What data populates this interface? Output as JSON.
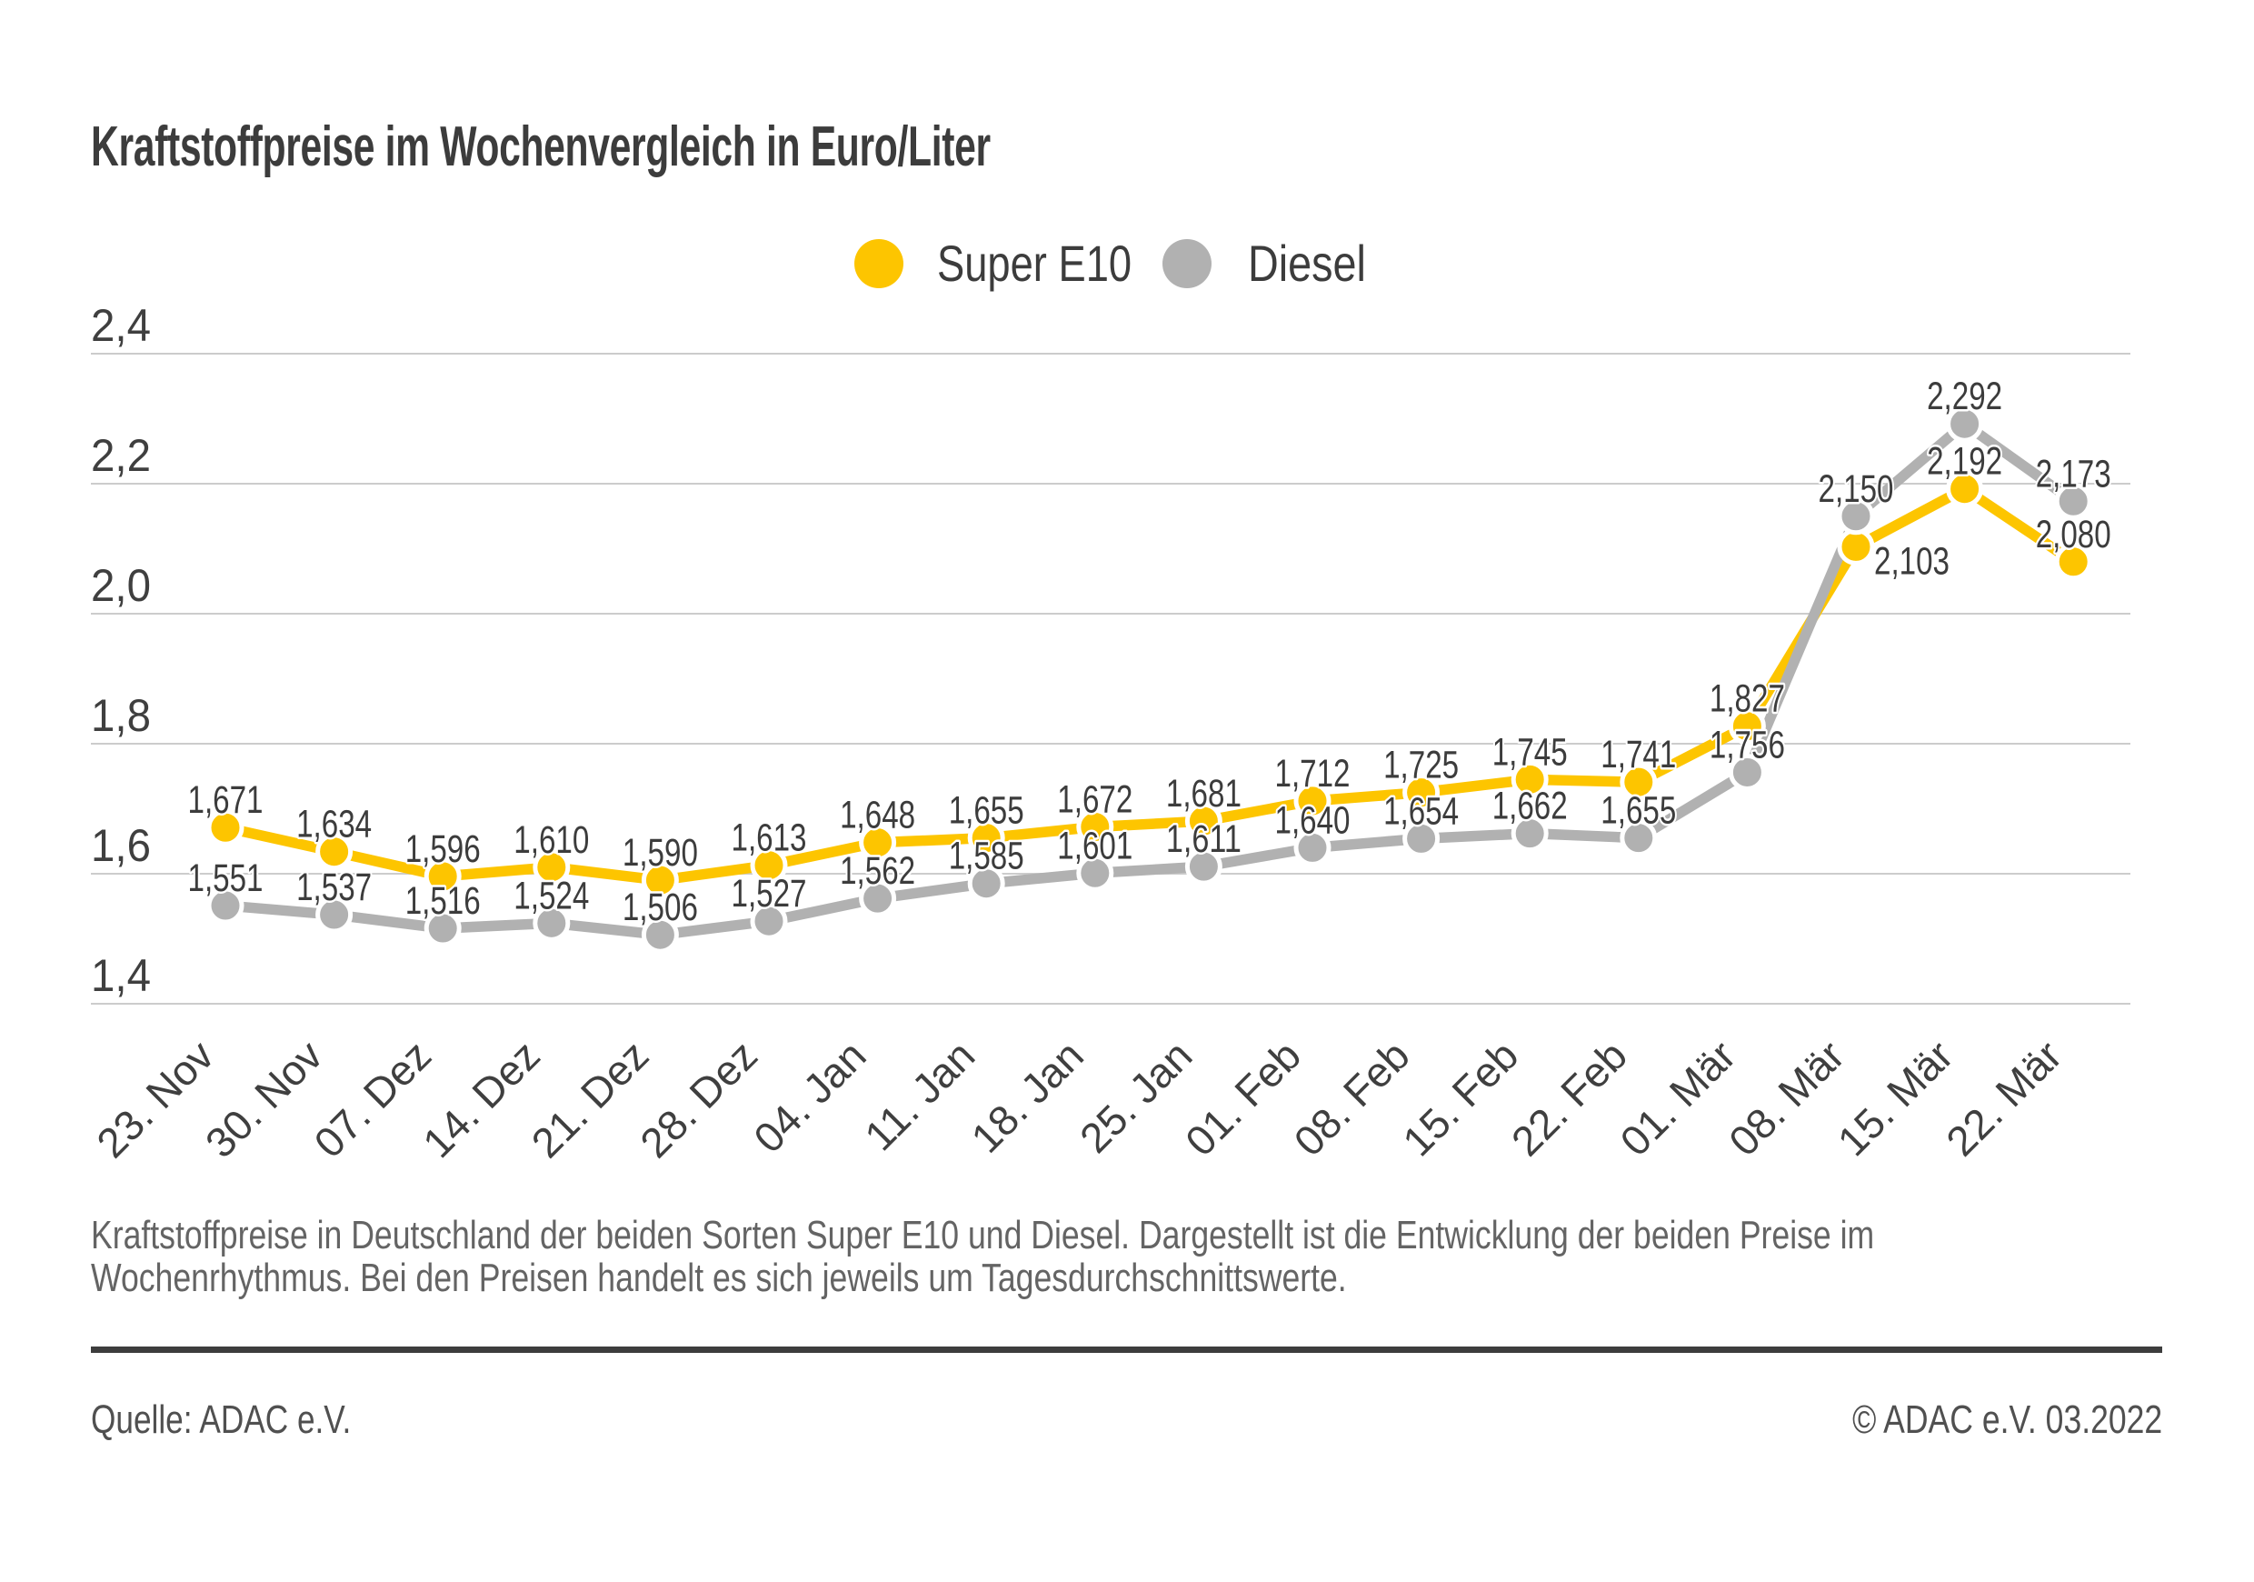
{
  "title": "Kraftstoffpreise im Wochenvergleich in Euro/Liter",
  "chart_data": {
    "type": "line",
    "categories": [
      "23. Nov",
      "30. Nov",
      "07. Dez",
      "14. Dez",
      "21. Dez",
      "28. Dez",
      "04. Jan",
      "11. Jan",
      "18. Jan",
      "25. Jan",
      "01. Feb",
      "08. Feb",
      "15. Feb",
      "22. Feb",
      "01. Mär",
      "08. Mär",
      "15. Mär",
      "22. Mär"
    ],
    "series": [
      {
        "name": "Super E10",
        "color": "#FDC500",
        "values": [
          1.671,
          1.634,
          1.596,
          1.61,
          1.59,
          1.613,
          1.648,
          1.655,
          1.672,
          1.681,
          1.712,
          1.725,
          1.745,
          1.741,
          1.827,
          2.103,
          2.192,
          2.08
        ],
        "labels": [
          "1,671",
          "1,634",
          "1,596",
          "1,610",
          "1,590",
          "1,613",
          "1,648",
          "1,655",
          "1,672",
          "1,681",
          "1,712",
          "1,725",
          "1,745",
          "1,741",
          "1,827",
          "2,103",
          "2,192",
          "2,080"
        ]
      },
      {
        "name": "Diesel",
        "color": "#B1B1B1",
        "values": [
          1.551,
          1.537,
          1.516,
          1.524,
          1.506,
          1.527,
          1.562,
          1.585,
          1.601,
          1.611,
          1.64,
          1.654,
          1.662,
          1.655,
          1.756,
          2.15,
          2.292,
          2.173
        ],
        "labels": [
          "1,551",
          "1,537",
          "1,516",
          "1,524",
          "1,506",
          "1,527",
          "1,562",
          "1,585",
          "1,601",
          "1,611",
          "1,640",
          "1,654",
          "1,662",
          "1,655",
          "1,756",
          "2,150",
          "2,292",
          "2,173"
        ]
      }
    ],
    "y_ticks": [
      {
        "value": 2.4,
        "label": "2,4"
      },
      {
        "value": 2.2,
        "label": "2,2"
      },
      {
        "value": 2.0,
        "label": "2,0"
      },
      {
        "value": 1.8,
        "label": "1,8"
      },
      {
        "value": 1.6,
        "label": "1,6"
      },
      {
        "value": 1.4,
        "label": "1,4"
      }
    ],
    "ylim": [
      1.4,
      2.4
    ],
    "grid": true,
    "legend_position": "top-center",
    "special_labels": [
      {
        "series": 0,
        "index": 15,
        "position": "below-right"
      }
    ],
    "colors": {
      "grid": "#CCCCCC",
      "axis_text": "#3F3F3F",
      "value_text": "#3C3C3C",
      "halo": "#FFFFFF"
    }
  },
  "caption": {
    "lines": [
      "Kraftstoffpreise in Deutschland der beiden Sorten Super E10 und Diesel. Dargestellt ist die Entwicklung der beiden Preise im",
      "Wochenrhythmus. Bei den Preisen handelt es sich jeweils um Tagesdurchschnittswerte."
    ]
  },
  "footer": {
    "source": "Quelle: ADAC e.V.",
    "copyright": "© ADAC e.V. 03.2022"
  }
}
